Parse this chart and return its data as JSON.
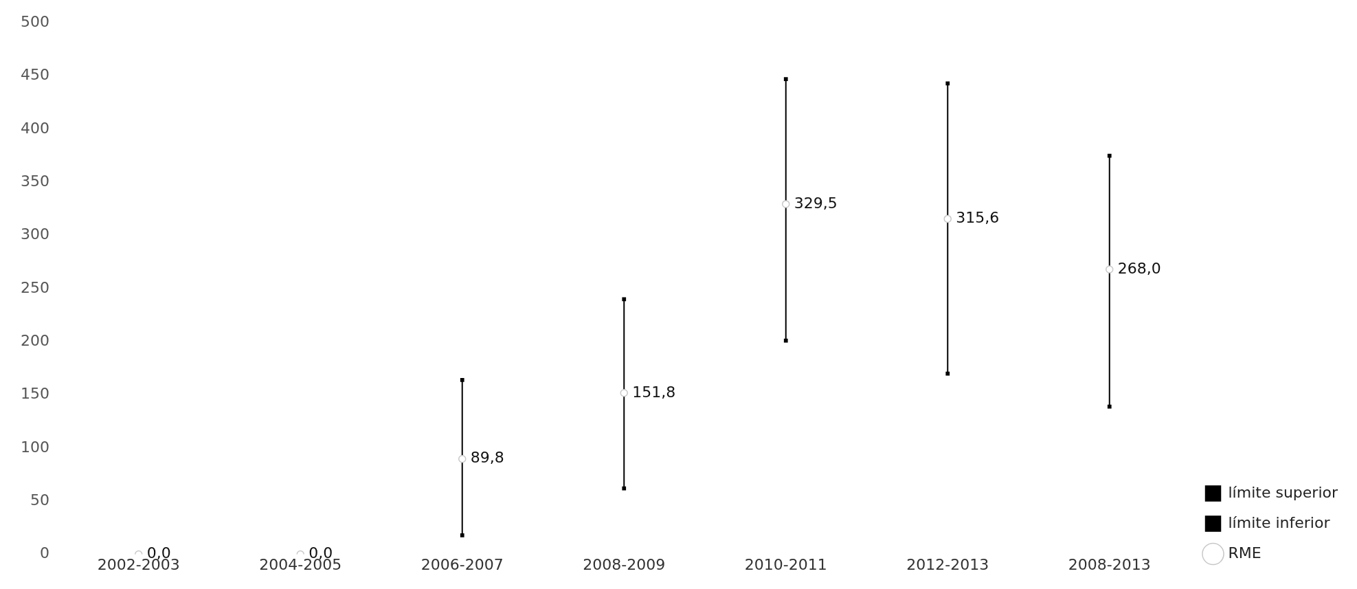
{
  "chart_data": {
    "type": "scatter",
    "categories": [
      "2002-2003",
      "2004-2005",
      "2006-2007",
      "2008-2009",
      "2010-2011",
      "2012-2013",
      "2008-2013"
    ],
    "series": [
      {
        "name": "límite superior",
        "marker": "square",
        "color": "#000000",
        "values": [
          null,
          null,
          164,
          240,
          447,
          443,
          375
        ]
      },
      {
        "name": "límite inferior",
        "marker": "square",
        "color": "#000000",
        "values": [
          null,
          null,
          18,
          62,
          201,
          170,
          139
        ]
      },
      {
        "name": "RME",
        "marker": "circle",
        "color": "#c8c8c8",
        "values": [
          0.0,
          0.0,
          89.8,
          151.8,
          329.5,
          315.6,
          268.0
        ],
        "value_labels": [
          "0,0",
          "0,0",
          "89,8",
          "151,8",
          "329,5",
          "315,6",
          "268,0"
        ]
      }
    ],
    "ylim": [
      0,
      500
    ],
    "yticks": [
      0,
      50,
      100,
      150,
      200,
      250,
      300,
      350,
      400,
      450,
      500
    ],
    "grid": false,
    "legend": "bottom right"
  }
}
